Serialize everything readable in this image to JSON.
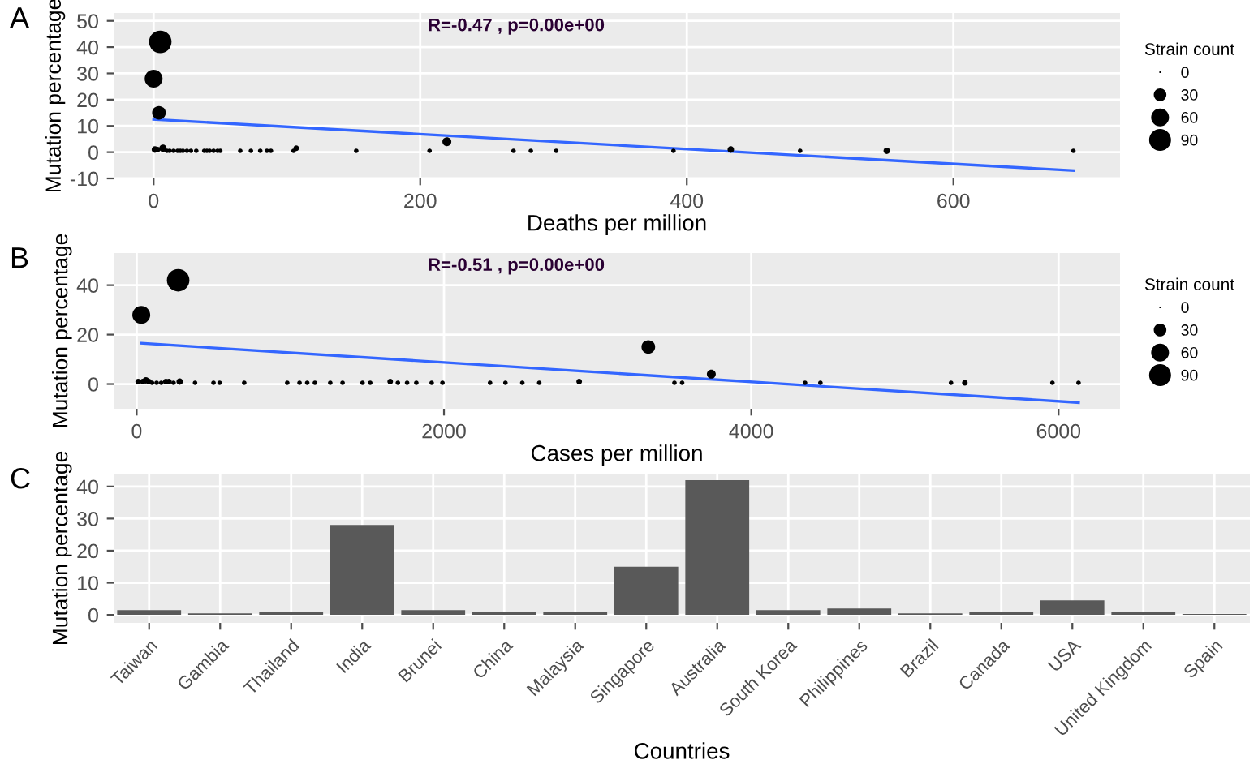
{
  "chart_data": [
    {
      "type": "bubble",
      "xlabel": "Deaths per million",
      "ylabel": "Mutation percentage",
      "legend_title": "Strain count",
      "size_legend": [
        0,
        30,
        60,
        90
      ],
      "grid": true,
      "xlim": [
        -30,
        725
      ],
      "ylim": [
        -10,
        53
      ],
      "xticks": [
        0,
        200,
        400,
        600
      ],
      "yticks": [
        -10,
        0,
        10,
        20,
        30,
        40,
        50
      ],
      "annotations": [
        "A",
        "R=-0.47 , p=0.00e+00"
      ],
      "series": [
        {
          "type": "bubble",
          "color": "#000000",
          "x": [
            5,
            0,
            4,
            220,
            7,
            1,
            3,
            10,
            12,
            15,
            18,
            20,
            22,
            25,
            28,
            32,
            38,
            40,
            42,
            45,
            48,
            50,
            65,
            73,
            80,
            85,
            88,
            105,
            107,
            152,
            207,
            270,
            283,
            302,
            390,
            433,
            485,
            550,
            690
          ],
          "values": [
            42,
            28,
            15,
            4,
            1.5,
            1,
            1,
            0.5,
            0.5,
            0.5,
            0.5,
            0.5,
            0.5,
            0.5,
            0.5,
            0.5,
            0.5,
            0.5,
            0.5,
            0.5,
            0.5,
            0.5,
            0.5,
            0.5,
            0.5,
            0.5,
            0.5,
            0.5,
            1.5,
            0.5,
            0.5,
            0.5,
            0.5,
            0.5,
            0.5,
            1,
            0.5,
            0.5,
            0.5
          ],
          "sizes": [
            95,
            60,
            35,
            15,
            10,
            8,
            6,
            4,
            4,
            4,
            4,
            4,
            4,
            4,
            4,
            4,
            4,
            4,
            4,
            4,
            4,
            4,
            4,
            4,
            4,
            4,
            4,
            4,
            6,
            4,
            4,
            4,
            4,
            4,
            4,
            8,
            4,
            8,
            4
          ]
        },
        {
          "type": "line",
          "color": "#3366ff",
          "x": [
            0,
            690
          ],
          "values": [
            12.5,
            -7
          ]
        }
      ]
    },
    {
      "type": "bubble",
      "xlabel": "Cases per million",
      "ylabel": "Mutation percentage",
      "legend_title": "Strain count",
      "size_legend": [
        0,
        30,
        60,
        90
      ],
      "grid": true,
      "xlim": [
        -150,
        6400
      ],
      "ylim": [
        -10,
        53
      ],
      "xticks": [
        0,
        2000,
        4000,
        6000
      ],
      "yticks": [
        0,
        20,
        40
      ],
      "annotations": [
        "B",
        "R=-0.51 , p=0.00e+00"
      ],
      "series": [
        {
          "type": "bubble",
          "color": "#000000",
          "x": [
            270,
            30,
            3330,
            3740,
            2880,
            1650,
            10,
            40,
            60,
            80,
            100,
            130,
            160,
            190,
            210,
            240,
            280,
            380,
            500,
            540,
            700,
            980,
            1060,
            1110,
            1160,
            1260,
            1340,
            1470,
            1520,
            1700,
            1760,
            1820,
            1920,
            1990,
            2300,
            2400,
            2510,
            2620,
            3500,
            3550,
            4350,
            4450,
            5300,
            5390,
            5960,
            6130
          ],
          "values": [
            42,
            28,
            15,
            4,
            1,
            1,
            1,
            1,
            1.5,
            1,
            0.5,
            0.5,
            0.5,
            1,
            1,
            0.5,
            1,
            0.5,
            0.5,
            0.5,
            0.5,
            0.5,
            0.5,
            0.5,
            0.5,
            0.5,
            0.5,
            0.5,
            0.5,
            0.5,
            0.5,
            0.5,
            0.5,
            0.5,
            0.5,
            0.5,
            0.5,
            0.5,
            0.5,
            0.5,
            0.5,
            0.5,
            0.5,
            0.5,
            0.5,
            0.5
          ],
          "sizes": [
            95,
            60,
            35,
            15,
            6,
            6,
            6,
            6,
            8,
            6,
            4,
            4,
            4,
            6,
            6,
            4,
            8,
            4,
            4,
            4,
            4,
            4,
            4,
            4,
            4,
            4,
            4,
            4,
            4,
            4,
            4,
            4,
            4,
            4,
            4,
            4,
            4,
            4,
            4,
            4,
            4,
            4,
            4,
            6,
            4,
            4
          ]
        },
        {
          "type": "line",
          "color": "#3366ff",
          "x": [
            30,
            6130
          ],
          "values": [
            16.5,
            -7.5
          ]
        }
      ]
    },
    {
      "type": "bar",
      "xlabel": "Countries",
      "ylabel": "Mutation percentage",
      "grid": true,
      "ylim": [
        -2.5,
        44
      ],
      "yticks": [
        0,
        10,
        20,
        30,
        40
      ],
      "annotations": [
        "C"
      ],
      "categories": [
        "Taiwan",
        "Gambia",
        "Thailand",
        "India",
        "Brunei",
        "China",
        "Malaysia",
        "Singapore",
        "Australia",
        "South Korea",
        "Philippines",
        "Brazil",
        "Canada",
        "USA",
        "United Kingdom",
        "Spain"
      ],
      "series": [
        {
          "color": "#595959",
          "values": [
            1.5,
            0.5,
            1,
            28,
            1.5,
            1,
            1,
            15,
            42,
            1.5,
            2,
            0.5,
            1,
            4.5,
            1,
            0.3
          ]
        }
      ]
    }
  ]
}
